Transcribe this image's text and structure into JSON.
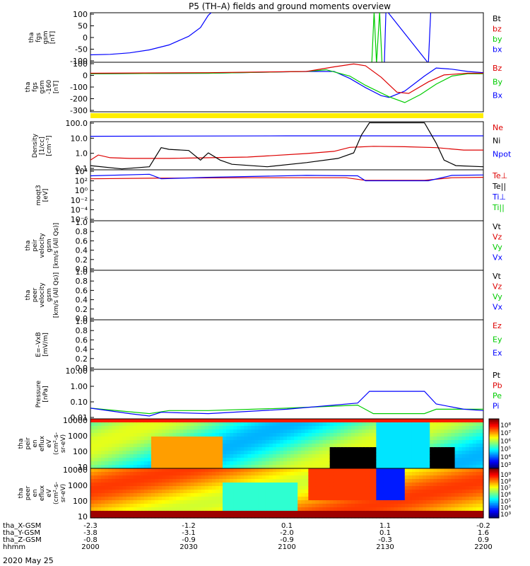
{
  "title": "P5 (TH–A) fields and ground moments overview",
  "date_label": "2020 May 25",
  "colors": {
    "black": "#000000",
    "red": "#dd0000",
    "green": "#00cc00",
    "blue": "#0000ff",
    "yellow": "#ffee00",
    "darkgreen": "#00aa00"
  },
  "chart_data": [
    {
      "type": "line",
      "id": "fgs",
      "ylabel_lines": [
        "tha",
        "fgs",
        "gsm",
        "[nT]"
      ],
      "ylim": [
        -100,
        100
      ],
      "yticks": [
        "100",
        "50",
        "0",
        "-50",
        "-100"
      ],
      "legend": [
        {
          "label": "Bt",
          "color": "#000000"
        },
        {
          "label": "bz",
          "color": "#dd0000"
        },
        {
          "label": "by",
          "color": "#00cc00"
        },
        {
          "label": "bx",
          "color": "#0000ff"
        }
      ],
      "series": [
        {
          "name": "bx",
          "color": "#0000ff",
          "points": [
            [
              0,
              -70
            ],
            [
              0.05,
              -68
            ],
            [
              0.1,
              -62
            ],
            [
              0.15,
              -50
            ],
            [
              0.2,
              -30
            ],
            [
              0.25,
              5
            ],
            [
              0.28,
              40
            ],
            [
              0.3,
              90
            ],
            [
              0.31,
              110
            ]
          ]
        },
        {
          "name": "by",
          "color": "#00cc00",
          "points": [
            [
              0.716,
              -110
            ],
            [
              0.722,
              110
            ],
            [
              0.728,
              -110
            ],
            [
              0.736,
              110
            ],
            [
              0.742,
              -110
            ]
          ]
        },
        {
          "name": "bx2",
          "color": "#0000ff",
          "points": [
            [
              0.748,
              -110
            ],
            [
              0.752,
              110
            ],
            [
              0.756,
              110
            ],
            [
              0.86,
              -110
            ],
            [
              0.866,
              110
            ]
          ]
        }
      ]
    },
    {
      "type": "line",
      "id": "fgs_b",
      "ylabel_lines": [
        "tha",
        "fgs",
        "gsm",
        "-160",
        "[nT]"
      ],
      "ylim": [
        -330,
        100
      ],
      "yticks": [
        "100",
        "0",
        "-100",
        "-200",
        "-300"
      ],
      "legend": [
        {
          "label": "Bz",
          "color": "#dd0000"
        },
        {
          "label": "By",
          "color": "#00cc00"
        },
        {
          "label": "Bx",
          "color": "#0000ff"
        }
      ],
      "series": [
        {
          "name": "Bx",
          "color": "#0000ff",
          "points": [
            [
              0,
              0
            ],
            [
              0.3,
              5
            ],
            [
              0.55,
              20
            ],
            [
              0.62,
              20
            ],
            [
              0.66,
              -40
            ],
            [
              0.7,
              -120
            ],
            [
              0.74,
              -190
            ],
            [
              0.76,
              -205
            ],
            [
              0.8,
              -150
            ],
            [
              0.85,
              -20
            ],
            [
              0.88,
              50
            ],
            [
              0.92,
              40
            ],
            [
              0.96,
              20
            ],
            [
              1,
              10
            ]
          ]
        },
        {
          "name": "By",
          "color": "#00cc00",
          "points": [
            [
              0,
              0
            ],
            [
              0.3,
              5
            ],
            [
              0.55,
              20
            ],
            [
              0.6,
              35
            ],
            [
              0.66,
              -20
            ],
            [
              0.7,
              -100
            ],
            [
              0.76,
              -200
            ],
            [
              0.8,
              -250
            ],
            [
              0.84,
              -180
            ],
            [
              0.88,
              -90
            ],
            [
              0.92,
              -20
            ],
            [
              0.96,
              0
            ],
            [
              1,
              0
            ]
          ]
        },
        {
          "name": "Bz",
          "color": "#dd0000",
          "points": [
            [
              0,
              5
            ],
            [
              0.3,
              10
            ],
            [
              0.55,
              20
            ],
            [
              0.62,
              60
            ],
            [
              0.67,
              85
            ],
            [
              0.7,
              70
            ],
            [
              0.74,
              -30
            ],
            [
              0.78,
              -160
            ],
            [
              0.81,
              -170
            ],
            [
              0.86,
              -70
            ],
            [
              0.9,
              -10
            ],
            [
              0.96,
              5
            ],
            [
              1,
              5
            ]
          ]
        }
      ]
    },
    {
      "type": "line",
      "id": "density",
      "ylabel_lines": [
        "Density",
        "[1/cc]",
        "[cm⁻³]"
      ],
      "yscale": "log",
      "ylim": [
        0.06,
        180
      ],
      "yticks": [
        "100.0",
        "10.0",
        "1.0",
        "0.1"
      ],
      "legend": [
        {
          "label": "Ne",
          "color": "#dd0000"
        },
        {
          "label": "Ni",
          "color": "#000000"
        },
        {
          "label": "Npot",
          "color": "#0000ff"
        }
      ],
      "series": [
        {
          "name": "Npot",
          "color": "#0000ff",
          "points": [
            [
              0,
              16
            ],
            [
              0.5,
              17
            ],
            [
              1,
              17
            ]
          ]
        },
        {
          "name": "Ne",
          "color": "#dd0000",
          "points": [
            [
              0,
              0.3
            ],
            [
              0.02,
              0.7
            ],
            [
              0.05,
              0.45
            ],
            [
              0.1,
              0.4
            ],
            [
              0.2,
              0.4
            ],
            [
              0.4,
              0.5
            ],
            [
              0.55,
              0.9
            ],
            [
              0.62,
              1.3
            ],
            [
              0.66,
              2.5
            ],
            [
              0.72,
              3.0
            ],
            [
              0.8,
              2.8
            ],
            [
              0.88,
              2.4
            ],
            [
              0.95,
              1.6
            ],
            [
              1,
              1.6
            ]
          ]
        },
        {
          "name": "Ni",
          "color": "#000000",
          "points": [
            [
              0,
              0.12
            ],
            [
              0.08,
              0.07
            ],
            [
              0.15,
              0.1
            ],
            [
              0.18,
              2.4
            ],
            [
              0.2,
              1.8
            ],
            [
              0.25,
              1.5
            ],
            [
              0.28,
              0.3
            ],
            [
              0.3,
              1.0
            ],
            [
              0.33,
              0.3
            ],
            [
              0.36,
              0.15
            ],
            [
              0.45,
              0.1
            ],
            [
              0.55,
              0.2
            ],
            [
              0.63,
              0.4
            ],
            [
              0.67,
              1.0
            ],
            [
              0.69,
              20
            ],
            [
              0.71,
              150
            ],
            [
              0.85,
              150
            ],
            [
              0.88,
              5
            ],
            [
              0.9,
              0.3
            ],
            [
              0.93,
              0.12
            ],
            [
              1,
              0.1
            ]
          ]
        }
      ]
    },
    {
      "type": "line",
      "id": "temperature",
      "ylabel_lines": [
        "moqt3",
        "[eV]"
      ],
      "yscale": "log",
      "ylim": [
        1e-06,
        20000
      ],
      "yticks": [
        "10⁴",
        "10²",
        "10⁰",
        "10⁻²",
        "10⁻⁴",
        "10⁻⁶"
      ],
      "legend": [
        {
          "label": "Te⊥",
          "color": "#dd0000"
        },
        {
          "label": "Te||",
          "color": "#000000"
        },
        {
          "label": "Ti⊥",
          "color": "#0000ff"
        },
        {
          "label": "Ti||",
          "color": "#00cc00"
        }
      ],
      "series": [
        {
          "name": "Te⊥",
          "color": "#dd0000",
          "points": [
            [
              0,
              300
            ],
            [
              0.15,
              400
            ],
            [
              0.4,
              500
            ],
            [
              0.65,
              500
            ],
            [
              0.7,
              150
            ],
            [
              0.85,
              150
            ],
            [
              0.92,
              500
            ],
            [
              1,
              600
            ]
          ]
        },
        {
          "name": "Ti⊥",
          "color": "#0000ff",
          "points": [
            [
              0,
              1200
            ],
            [
              0.15,
              2500
            ],
            [
              0.18,
              300
            ],
            [
              0.3,
              600
            ],
            [
              0.55,
              1500
            ],
            [
              0.68,
              1200
            ],
            [
              0.7,
              120
            ],
            [
              0.86,
              120
            ],
            [
              0.92,
              1500
            ],
            [
              1,
              1800
            ]
          ]
        }
      ]
    },
    {
      "type": "line",
      "id": "peir_velocity",
      "ylabel_lines": [
        "tha",
        "peir",
        "velocity",
        "gsm",
        "[km/s (All Qs)]"
      ],
      "ylim": [
        0,
        1
      ],
      "yticks": [
        "1.0",
        "0.8",
        "0.6",
        "0.4",
        "0.2",
        "0.0"
      ],
      "legend": [
        {
          "label": "Vt",
          "color": "#000000"
        },
        {
          "label": "Vz",
          "color": "#dd0000"
        },
        {
          "label": "Vy",
          "color": "#00cc00"
        },
        {
          "label": "Vx",
          "color": "#0000ff"
        }
      ],
      "series": []
    },
    {
      "type": "line",
      "id": "peer_velocity",
      "ylabel_lines": [
        "tha",
        "peer",
        "velocity",
        "gsm",
        "[km/s (All Qs)]"
      ],
      "ylim": [
        0,
        1
      ],
      "yticks": [
        "1.0",
        "0.8",
        "0.6",
        "0.4",
        "0.2",
        "0.0"
      ],
      "legend": [
        {
          "label": "Vt",
          "color": "#000000"
        },
        {
          "label": "Vz",
          "color": "#dd0000"
        },
        {
          "label": "Vy",
          "color": "#00cc00"
        },
        {
          "label": "Vx",
          "color": "#0000ff"
        }
      ],
      "series": []
    },
    {
      "type": "line",
      "id": "efield",
      "ylabel_lines": [
        "E=–VxB",
        "[mV/m]"
      ],
      "ylim": [
        0,
        1
      ],
      "yticks": [
        "1.0",
        "0.8",
        "0.6",
        "0.4",
        "0.2",
        "0.0"
      ],
      "legend": [
        {
          "label": "Ez",
          "color": "#dd0000"
        },
        {
          "label": "Ey",
          "color": "#00cc00"
        },
        {
          "label": "Ex",
          "color": "#0000ff"
        }
      ],
      "series": []
    },
    {
      "type": "line",
      "id": "pressure",
      "ylabel_lines": [
        "Pressure",
        "[nPa]"
      ],
      "yscale": "log",
      "ylim": [
        0.005,
        20
      ],
      "yticks": [
        "10.00",
        "1.00",
        "0.10",
        "0.01"
      ],
      "legend": [
        {
          "label": "Pt",
          "color": "#000000"
        },
        {
          "label": "Pb",
          "color": "#dd0000"
        },
        {
          "label": "Pe",
          "color": "#00cc00"
        },
        {
          "label": "Pi",
          "color": "#0000ff"
        }
      ],
      "series": [
        {
          "name": "Pe",
          "color": "#00cc00",
          "points": [
            [
              0,
              0.03
            ],
            [
              0.15,
              0.012
            ],
            [
              0.2,
              0.02
            ],
            [
              0.3,
              0.02
            ],
            [
              0.5,
              0.03
            ],
            [
              0.68,
              0.05
            ],
            [
              0.72,
              0.012
            ],
            [
              0.85,
              0.012
            ],
            [
              0.88,
              0.025
            ],
            [
              1,
              0.025
            ]
          ]
        },
        {
          "name": "Pi",
          "color": "#0000ff",
          "points": [
            [
              0,
              0.03
            ],
            [
              0.1,
              0.012
            ],
            [
              0.15,
              0.008
            ],
            [
              0.18,
              0.015
            ],
            [
              0.3,
              0.012
            ],
            [
              0.5,
              0.025
            ],
            [
              0.68,
              0.07
            ],
            [
              0.71,
              0.5
            ],
            [
              0.85,
              0.5
            ],
            [
              0.88,
              0.06
            ],
            [
              0.95,
              0.025
            ],
            [
              1,
              0.02
            ]
          ]
        }
      ]
    },
    {
      "type": "heatmap",
      "id": "peir_eflux",
      "ylabel_lines": [
        "tha",
        "peir",
        "en",
        "eflux",
        "eV",
        "(cm²-s-",
        "sr-eV)"
      ],
      "yticks": [
        "10000",
        "1000",
        "100",
        "10"
      ],
      "colorbar_ticks": [
        "10⁸",
        "10⁷",
        "10⁶",
        "10⁵",
        "10⁴",
        "10³"
      ],
      "colorbar_label": "[eV/(cm²-s-sr-eV)] (All Qs)]"
    },
    {
      "type": "heatmap",
      "id": "peer_eflux",
      "ylabel_lines": [
        "tha",
        "peer",
        "en",
        "eflux",
        "eV",
        "(cm²-s-",
        "sr-eV)"
      ],
      "yticks": [
        "10000",
        "1000",
        "100",
        "10"
      ],
      "colorbar_ticks": [
        "10⁹",
        "10⁸",
        "10⁷",
        "10⁶",
        "10⁵",
        "10⁴",
        "10³"
      ],
      "colorbar_label": "[eV/(cm²-s-sr-eV)] (All Qs)]"
    }
  ],
  "x_axis": {
    "rows": [
      {
        "label": "tha_X-GSM",
        "values": [
          "-2.3",
          "-1.2",
          "0.1",
          "1.1",
          "-0.2"
        ]
      },
      {
        "label": "tha_Y-GSM",
        "values": [
          "-3.8",
          "-3.1",
          "-2.0",
          "0.1",
          "1.6"
        ]
      },
      {
        "label": "tha_Z-GSM",
        "values": [
          "-0.8",
          "-0.9",
          "-0.9",
          "-0.3",
          "0.9"
        ]
      },
      {
        "label": "hhmm",
        "values": [
          "2000",
          "2030",
          "2100",
          "2130",
          "2200"
        ]
      }
    ]
  }
}
